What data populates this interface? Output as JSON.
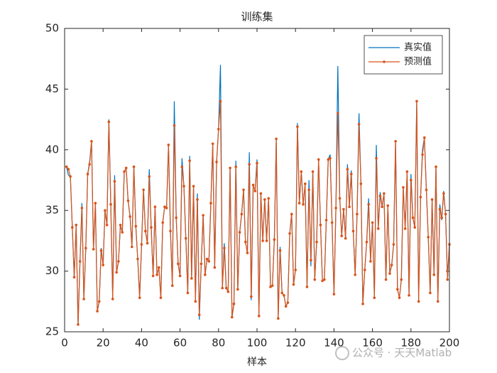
{
  "chart_data": {
    "type": "line",
    "title": "训练集",
    "xlabel": "样本",
    "watermark": "公众号 · 天天Matlab",
    "xlim": [
      0,
      200
    ],
    "ylim": [
      25,
      50
    ],
    "xticks": [
      0,
      20,
      40,
      60,
      80,
      100,
      120,
      140,
      160,
      180,
      200
    ],
    "yticks": [
      25,
      30,
      35,
      40,
      45,
      50
    ],
    "legend": "northeast",
    "grid": false,
    "x": [
      1,
      2,
      3,
      4,
      5,
      6,
      7,
      8,
      9,
      10,
      11,
      12,
      13,
      14,
      15,
      16,
      17,
      18,
      19,
      20,
      21,
      22,
      23,
      24,
      25,
      26,
      27,
      28,
      29,
      30,
      31,
      32,
      33,
      34,
      35,
      36,
      37,
      38,
      39,
      40,
      41,
      42,
      43,
      44,
      45,
      46,
      47,
      48,
      49,
      50,
      51,
      52,
      53,
      54,
      55,
      56,
      57,
      58,
      59,
      60,
      61,
      62,
      63,
      64,
      65,
      66,
      67,
      68,
      69,
      70,
      71,
      72,
      73,
      74,
      75,
      76,
      77,
      78,
      79,
      80,
      81,
      82,
      83,
      84,
      85,
      86,
      87,
      88,
      89,
      90,
      91,
      92,
      93,
      94,
      95,
      96,
      97,
      98,
      99,
      100,
      101,
      102,
      103,
      104,
      105,
      106,
      107,
      108,
      109,
      110,
      111,
      112,
      113,
      114,
      115,
      116,
      117,
      118,
      119,
      120,
      121,
      122,
      123,
      124,
      125,
      126,
      127,
      128,
      129,
      130,
      131,
      132,
      133,
      134,
      135,
      136,
      137,
      138,
      139,
      140,
      141,
      142,
      143,
      144,
      145,
      146,
      147,
      148,
      149,
      150,
      151,
      152,
      153,
      154,
      155,
      156,
      157,
      158,
      159,
      160,
      161,
      162,
      163,
      164,
      165,
      166,
      167,
      168,
      169,
      170,
      171,
      172,
      173,
      174,
      175,
      176,
      177,
      178,
      179,
      180,
      181,
      182,
      183,
      184,
      185,
      186,
      187,
      188,
      189,
      190,
      191,
      192,
      193,
      194,
      195,
      196,
      197,
      198,
      199,
      200
    ],
    "series": [
      {
        "name": "真实值",
        "color": "#0072BD",
        "marker": false,
        "values": [
          38.6,
          37.9,
          37.8,
          33.6,
          29.5,
          33.8,
          25.6,
          30.8,
          35.6,
          27.7,
          31.9,
          38.0,
          39.0,
          40.7,
          31.8,
          35.6,
          26.7,
          27.5,
          31.9,
          30.5,
          35.0,
          33.8,
          42.5,
          35.5,
          27.7,
          37.9,
          29.9,
          30.8,
          33.8,
          33.2,
          38.2,
          38.5,
          35.8,
          34.5,
          32.0,
          38.6,
          33.7,
          31.0,
          27.8,
          32.2,
          36.7,
          33.3,
          32.3,
          38.4,
          33.6,
          29.6,
          35.3,
          29.7,
          30.3,
          27.8,
          34.0,
          35.3,
          35.2,
          40.4,
          33.3,
          28.8,
          44.0,
          34.4,
          30.6,
          29.6,
          39.3,
          37.0,
          32.7,
          28.2,
          39.5,
          29.4,
          37.0,
          27.5,
          36.4,
          26.0,
          30.6,
          34.6,
          29.7,
          31.0,
          30.8,
          35.6,
          40.5,
          30.3,
          39.0,
          41.7,
          47.0,
          28.6,
          32.3,
          28.6,
          28.3,
          38.5,
          26.2,
          27.3,
          39.1,
          28.5,
          33.2,
          34.7,
          36.7,
          32.4,
          31.5,
          39.8,
          27.6,
          37.1,
          36.6,
          39.2,
          26.3,
          36.4,
          32.5,
          35.9,
          32.5,
          36.0,
          28.7,
          28.8,
          32.6,
          40.9,
          26.1,
          32.0,
          28.2,
          28.0,
          27.1,
          27.4,
          33.1,
          34.7,
          28.9,
          30.1,
          42.2,
          35.6,
          38.2,
          35.5,
          37.2,
          28.7,
          37.5,
          30.4,
          38.2,
          29.3,
          32.4,
          39.2,
          33.8,
          29.2,
          29.3,
          34.2,
          39.2,
          39.6,
          34.0,
          28.1,
          35.2,
          46.9,
          36.0,
          32.9,
          35.1,
          32.7,
          38.8,
          35.3,
          38.3,
          33.3,
          29.7,
          34.7,
          43.0,
          37.2,
          27.3,
          30.1,
          32.4,
          36.0,
          30.8,
          34.0,
          27.8,
          40.4,
          33.5,
          36.5,
          35.3,
          36.4,
          29.3,
          35.4,
          29.8,
          30.5,
          32.2,
          40.7,
          28.5,
          27.8,
          29.3,
          36.9,
          33.5,
          38.2,
          28.0,
          38.0,
          34.4,
          33.6,
          44.0,
          27.5,
          36.1,
          40.0,
          41.0,
          36.7,
          32.8,
          28.2,
          35.9,
          29.7,
          38.6,
          27.5,
          35.5,
          34.2,
          36.6,
          34.7,
          29.3,
          32.4
        ]
      },
      {
        "name": "预测值",
        "color": "#D95319",
        "marker": true,
        "values": [
          38.6,
          38.4,
          37.8,
          33.6,
          29.5,
          33.8,
          25.6,
          30.8,
          35.2,
          27.7,
          31.9,
          38.0,
          38.8,
          40.7,
          31.8,
          35.6,
          26.7,
          27.5,
          31.7,
          30.5,
          35.0,
          33.8,
          42.3,
          35.5,
          27.7,
          37.4,
          29.9,
          30.8,
          33.8,
          33.2,
          38.2,
          38.5,
          35.8,
          34.5,
          32.0,
          38.6,
          33.7,
          31.0,
          27.8,
          32.2,
          36.7,
          33.3,
          32.3,
          37.8,
          33.6,
          29.6,
          35.3,
          29.7,
          30.3,
          27.8,
          34.0,
          35.3,
          35.2,
          40.4,
          33.3,
          28.8,
          42.0,
          34.4,
          30.6,
          29.6,
          38.6,
          37.0,
          32.7,
          28.2,
          39.1,
          29.4,
          37.0,
          27.5,
          35.9,
          26.4,
          30.6,
          34.6,
          29.7,
          31.0,
          30.8,
          35.6,
          40.5,
          30.3,
          39.0,
          41.7,
          44.0,
          28.6,
          31.9,
          28.6,
          28.3,
          38.5,
          26.2,
          27.3,
          38.6,
          28.5,
          33.2,
          34.7,
          36.7,
          32.4,
          31.5,
          38.8,
          27.9,
          37.1,
          36.6,
          38.9,
          26.3,
          36.4,
          32.5,
          35.9,
          32.5,
          36.0,
          28.7,
          28.8,
          32.6,
          40.9,
          26.1,
          31.7,
          28.2,
          28.0,
          27.1,
          27.4,
          33.1,
          34.7,
          28.9,
          30.1,
          41.9,
          35.6,
          38.2,
          35.5,
          37.2,
          28.7,
          36.7,
          30.9,
          38.2,
          29.3,
          32.4,
          39.2,
          33.8,
          29.2,
          29.3,
          34.2,
          39.2,
          39.3,
          34.0,
          28.1,
          35.2,
          43.0,
          36.0,
          32.9,
          35.1,
          32.7,
          38.4,
          35.3,
          38.0,
          33.3,
          29.7,
          34.7,
          42.1,
          37.2,
          27.3,
          30.1,
          32.4,
          35.5,
          30.8,
          34.0,
          27.8,
          39.3,
          33.5,
          36.2,
          35.3,
          36.4,
          29.3,
          35.4,
          29.8,
          30.5,
          32.2,
          40.7,
          28.5,
          27.8,
          29.3,
          36.9,
          33.5,
          38.2,
          28.0,
          37.5,
          34.4,
          33.6,
          44.0,
          27.5,
          36.1,
          39.6,
          41.0,
          36.7,
          32.8,
          28.2,
          35.9,
          29.7,
          38.6,
          27.5,
          35.1,
          34.4,
          36.4,
          34.7,
          29.3,
          32.2
        ]
      }
    ]
  }
}
